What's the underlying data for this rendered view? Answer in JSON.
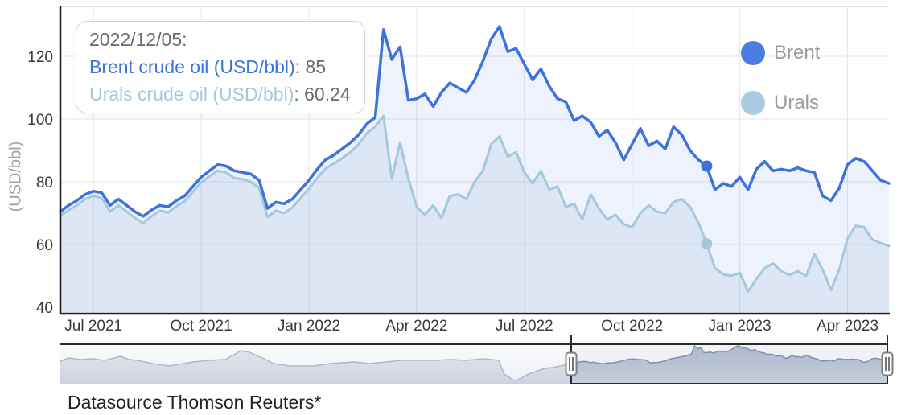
{
  "chart_data": {
    "type": "line",
    "title": "",
    "ylabel": "(USD/bbl)",
    "ylim": [
      40,
      135
    ],
    "yticks": [
      40,
      60,
      80,
      100,
      120
    ],
    "grid": true,
    "legend_position": "right-top",
    "x": [
      "2021-06-07",
      "2021-06-14",
      "2021-06-21",
      "2021-06-28",
      "2021-07-05",
      "2021-07-12",
      "2021-07-19",
      "2021-07-26",
      "2021-08-02",
      "2021-08-09",
      "2021-08-16",
      "2021-08-23",
      "2021-08-30",
      "2021-09-06",
      "2021-09-13",
      "2021-09-20",
      "2021-09-27",
      "2021-10-04",
      "2021-10-11",
      "2021-10-18",
      "2021-10-25",
      "2021-11-01",
      "2021-11-08",
      "2021-11-15",
      "2021-11-22",
      "2021-11-29",
      "2021-12-06",
      "2021-12-13",
      "2021-12-20",
      "2021-12-27",
      "2022-01-03",
      "2022-01-10",
      "2022-01-17",
      "2022-01-24",
      "2022-01-31",
      "2022-02-07",
      "2022-02-14",
      "2022-02-21",
      "2022-02-28",
      "2022-03-07",
      "2022-03-14",
      "2022-03-21",
      "2022-03-28",
      "2022-04-04",
      "2022-04-11",
      "2022-04-18",
      "2022-04-25",
      "2022-05-02",
      "2022-05-09",
      "2022-05-16",
      "2022-05-23",
      "2022-05-30",
      "2022-06-06",
      "2022-06-13",
      "2022-06-20",
      "2022-06-27",
      "2022-07-04",
      "2022-07-11",
      "2022-07-18",
      "2022-07-25",
      "2022-08-01",
      "2022-08-08",
      "2022-08-15",
      "2022-08-22",
      "2022-08-29",
      "2022-09-05",
      "2022-09-12",
      "2022-09-19",
      "2022-09-26",
      "2022-10-03",
      "2022-10-10",
      "2022-10-17",
      "2022-10-24",
      "2022-10-31",
      "2022-11-07",
      "2022-11-14",
      "2022-11-21",
      "2022-11-28",
      "2022-12-05",
      "2022-12-12",
      "2022-12-19",
      "2022-12-26",
      "2023-01-02",
      "2023-01-09",
      "2023-01-16",
      "2023-01-23",
      "2023-01-30",
      "2023-02-06",
      "2023-02-13",
      "2023-02-20",
      "2023-02-27",
      "2023-03-06",
      "2023-03-13",
      "2023-03-20",
      "2023-03-27",
      "2023-04-03",
      "2023-04-10",
      "2023-04-17",
      "2023-04-24",
      "2023-05-01",
      "2023-05-08"
    ],
    "x_ticks": [
      {
        "i": 4,
        "label": "Jul 2021"
      },
      {
        "i": 17,
        "label": "Oct 2021"
      },
      {
        "i": 30,
        "label": "Jan 2022"
      },
      {
        "i": 43,
        "label": "Apr 2022"
      },
      {
        "i": 56,
        "label": "Jul 2022"
      },
      {
        "i": 69,
        "label": "Oct 2022"
      },
      {
        "i": 82,
        "label": "Jan 2023"
      },
      {
        "i": 95,
        "label": "Apr 2023"
      }
    ],
    "series": [
      {
        "name": "Brent",
        "label": "Brent crude oil (USD/bbl)",
        "color": "#3e73dc",
        "values": [
          70.5,
          72.5,
          74,
          76,
          77,
          76.5,
          72.5,
          74.5,
          72.5,
          70.5,
          69,
          71,
          72.5,
          72,
          74,
          75.5,
          78.5,
          81.5,
          83.5,
          85.5,
          85,
          83.5,
          83,
          82.5,
          80.5,
          71.5,
          73.5,
          73,
          74.5,
          77.5,
          80.5,
          84,
          87,
          88.5,
          90.5,
          92.5,
          95,
          98.5,
          100.5,
          128.5,
          119,
          123,
          106,
          106.5,
          108,
          104,
          108.5,
          111.5,
          110,
          108.5,
          112.5,
          118.5,
          125.5,
          129.5,
          121.5,
          122.5,
          117.5,
          112.5,
          116,
          110.5,
          106.5,
          105.5,
          99.5,
          101,
          99,
          94.5,
          96.5,
          92.5,
          87,
          92,
          97,
          91.5,
          93,
          90.5,
          97.5,
          95,
          90,
          87,
          85,
          77.5,
          79.5,
          78.5,
          81.5,
          77.5,
          84,
          86.5,
          83.5,
          84,
          83.5,
          84.5,
          83.5,
          83,
          75.5,
          74,
          78,
          85.5,
          87.5,
          86.5,
          83.5,
          80.5,
          79.5
        ]
      },
      {
        "name": "Urals",
        "label": "Urals crude oil (USD/bbl)",
        "color": "#a6c8dc",
        "values": [
          69.2,
          71,
          72.5,
          74.5,
          75.5,
          74.8,
          70.5,
          72.5,
          70.5,
          68.5,
          66.8,
          69,
          70.8,
          70.2,
          72.2,
          73.8,
          76.8,
          79.8,
          81.8,
          83.5,
          83,
          81.2,
          80.8,
          80,
          78,
          68.8,
          70.8,
          70,
          71.8,
          74.8,
          77.8,
          81.2,
          84.2,
          85.8,
          87.5,
          89.5,
          92,
          95.5,
          97.5,
          101,
          81,
          92.5,
          81,
          72,
          69.5,
          72.5,
          68.5,
          75.5,
          76,
          74.5,
          80,
          83.5,
          92,
          94.5,
          88,
          89.5,
          83,
          79.5,
          83.5,
          77.5,
          78.5,
          72,
          73,
          68,
          76,
          71.5,
          68,
          69.5,
          66.5,
          65.5,
          70,
          72.5,
          70.5,
          70,
          73.5,
          74.5,
          72,
          67,
          60.24,
          52.5,
          50.5,
          50,
          51,
          45,
          49,
          52.5,
          54,
          51.5,
          50.3,
          51.5,
          50,
          57,
          52,
          45.5,
          52,
          62,
          66,
          65.5,
          61.5,
          60.5,
          59.5
        ]
      }
    ],
    "marker": {
      "index": 78,
      "date": "2022-12-05",
      "brent": 85,
      "urals": 60.24
    }
  },
  "tooltip": {
    "date": "2022/12/05:",
    "sep": ": ",
    "rows": [
      {
        "label": "Brent crude oil (USD/bbl)",
        "value": "85"
      },
      {
        "label": "Urals crude oil (USD/bbl)",
        "value": "60.24"
      }
    ]
  },
  "legend": {
    "items": [
      {
        "label": "Brent",
        "color": "#4a7de2"
      },
      {
        "label": "Urals",
        "color": "#abcce0"
      }
    ]
  },
  "footer": {
    "datasource": "Datasource Thomson Reuters*"
  },
  "navigator": {
    "history_points": [
      [
        0,
        21
      ],
      [
        0.016,
        17
      ],
      [
        0.039,
        19
      ],
      [
        0.063,
        18
      ],
      [
        0.087,
        20
      ],
      [
        0.118,
        15
      ],
      [
        0.134,
        19
      ],
      [
        0.15,
        20
      ],
      [
        0.181,
        24
      ],
      [
        0.213,
        27
      ],
      [
        0.26,
        22
      ],
      [
        0.291,
        20
      ],
      [
        0.323,
        19
      ],
      [
        0.354,
        8
      ],
      [
        0.37,
        10
      ],
      [
        0.402,
        19
      ],
      [
        0.417,
        24
      ],
      [
        0.449,
        27
      ],
      [
        0.496,
        27
      ],
      [
        0.528,
        24
      ],
      [
        0.575,
        22
      ],
      [
        0.606,
        24
      ],
      [
        0.638,
        22
      ],
      [
        0.669,
        20
      ],
      [
        0.701,
        20
      ],
      [
        0.732,
        20
      ],
      [
        0.764,
        19
      ],
      [
        0.795,
        20
      ],
      [
        0.827,
        18
      ],
      [
        0.843,
        19
      ],
      [
        0.858,
        20
      ],
      [
        0.869,
        37
      ],
      [
        0.885,
        44
      ],
      [
        0.893,
        45
      ],
      [
        0.917,
        37
      ],
      [
        0.948,
        30
      ],
      [
        0.963,
        29
      ],
      [
        0.979,
        27
      ],
      [
        1,
        24
      ]
    ]
  },
  "colors": {
    "brent": "#3e73dc",
    "urals": "#a6c8dc",
    "brent_fill": "rgba(62,115,220,0.09)",
    "urals_fill": "rgba(150,185,215,0.20)",
    "grid": "#e5e5e5",
    "frame_top": "#dadada",
    "axis": "#1f1f1f",
    "tick_label": "#3a3a3a",
    "axis_title": "#9ba3ae",
    "legend_text": "#9b9b9b",
    "tooltip_text": "#6a6a6a",
    "nav_outline": "#2a2a2a",
    "nav_hist_line": "#b0b8c7",
    "nav_sel_line": "#8190ac"
  }
}
